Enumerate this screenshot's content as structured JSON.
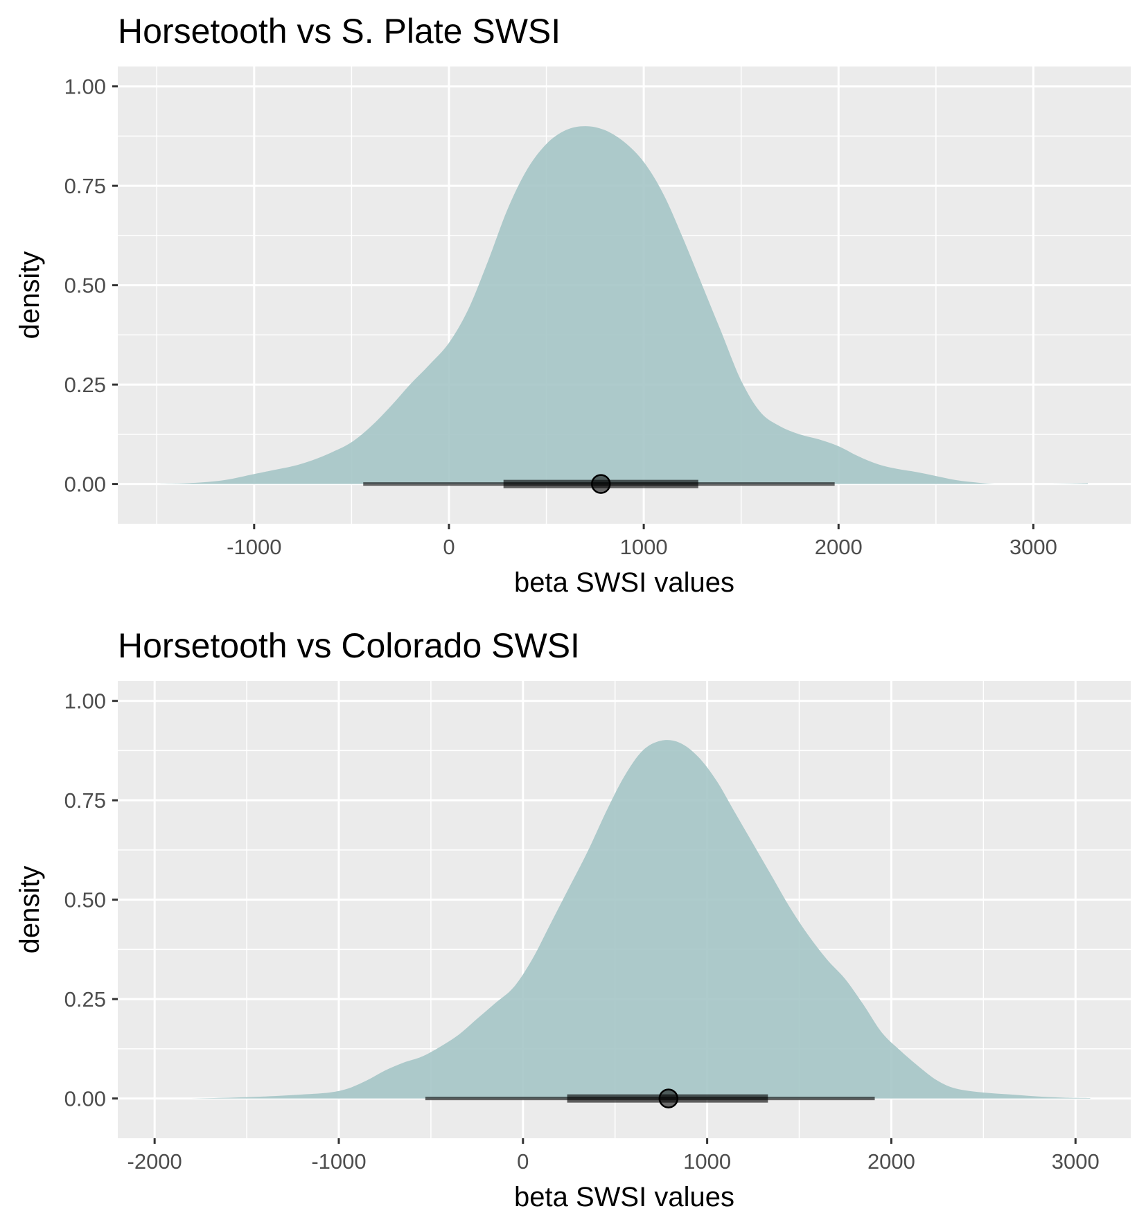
{
  "chart_data": [
    {
      "type": "area",
      "title": "Horsetooth vs S. Plate SWSI",
      "xlabel": "beta SWSI values",
      "ylabel": "density",
      "xlim": [
        -1700,
        3500
      ],
      "ylim": [
        -0.1,
        1.05
      ],
      "x_ticks": [
        -1000,
        0,
        1000,
        2000,
        3000
      ],
      "x_tick_labels": [
        "-1000",
        "0",
        "1000",
        "2000",
        "3000"
      ],
      "y_ticks": [
        0,
        0.25,
        0.5,
        0.75,
        1
      ],
      "y_tick_labels": [
        "0.00",
        "0.25",
        "0.50",
        "0.75",
        "1.00"
      ],
      "grid": true,
      "fill_color": "#a5c5c7",
      "panel_color": "#ebebeb",
      "density": {
        "x": [
          -1490,
          -1300,
          -1150,
          -1000,
          -900,
          -800,
          -700,
          -600,
          -500,
          -400,
          -300,
          -200,
          -100,
          0,
          100,
          200,
          300,
          400,
          500,
          600,
          700,
          800,
          900,
          1000,
          1100,
          1200,
          1300,
          1400,
          1500,
          1600,
          1700,
          1800,
          1900,
          2000,
          2100,
          2200,
          2300,
          2400,
          2500,
          2600,
          2700,
          2800,
          2900,
          3000,
          3100,
          3200,
          3280
        ],
        "y": [
          0.0,
          0.003,
          0.01,
          0.025,
          0.035,
          0.045,
          0.06,
          0.08,
          0.105,
          0.145,
          0.195,
          0.25,
          0.3,
          0.355,
          0.44,
          0.56,
          0.69,
          0.79,
          0.855,
          0.89,
          0.9,
          0.89,
          0.86,
          0.81,
          0.73,
          0.62,
          0.5,
          0.38,
          0.26,
          0.18,
          0.145,
          0.125,
          0.112,
          0.095,
          0.07,
          0.05,
          0.038,
          0.03,
          0.02,
          0.01,
          0.004,
          0.0,
          0.0,
          0.0,
          0.0,
          0.001,
          0.002
        ]
      },
      "point_interval": {
        "point": 780,
        "inner_interval": [
          280,
          1280
        ],
        "outer_interval": [
          -440,
          1980
        ]
      }
    },
    {
      "type": "area",
      "title": "Horsetooth vs Colorado SWSI",
      "xlabel": "beta SWSI values",
      "ylabel": "density",
      "xlim": [
        -2200,
        3300
      ],
      "ylim": [
        -0.1,
        1.05
      ],
      "x_ticks": [
        -2000,
        -1000,
        0,
        1000,
        2000,
        3000
      ],
      "x_tick_labels": [
        "-2000",
        "-1000",
        "0",
        "1000",
        "2000",
        "3000"
      ],
      "y_ticks": [
        0,
        0.25,
        0.5,
        0.75,
        1
      ],
      "y_tick_labels": [
        "0.00",
        "0.25",
        "0.50",
        "0.75",
        "1.00"
      ],
      "grid": true,
      "fill_color": "#a5c5c7",
      "panel_color": "#ebebeb",
      "density": {
        "x": [
          -1940,
          -1800,
          -1600,
          -1400,
          -1200,
          -1050,
          -950,
          -850,
          -750,
          -650,
          -550,
          -450,
          -350,
          -250,
          -150,
          -50,
          50,
          150,
          250,
          350,
          450,
          550,
          650,
          750,
          850,
          950,
          1050,
          1150,
          1250,
          1350,
          1450,
          1550,
          1650,
          1750,
          1850,
          1950,
          2050,
          2150,
          2250,
          2350,
          2500,
          2650,
          2800,
          2950,
          3080
        ],
        "y": [
          0.0,
          0.0,
          0.002,
          0.005,
          0.01,
          0.015,
          0.025,
          0.045,
          0.07,
          0.09,
          0.105,
          0.13,
          0.16,
          0.2,
          0.24,
          0.28,
          0.35,
          0.44,
          0.53,
          0.62,
          0.72,
          0.81,
          0.875,
          0.9,
          0.895,
          0.86,
          0.8,
          0.72,
          0.64,
          0.56,
          0.48,
          0.41,
          0.35,
          0.3,
          0.235,
          0.165,
          0.12,
          0.08,
          0.045,
          0.025,
          0.015,
          0.01,
          0.005,
          0.002,
          0.001
        ]
      },
      "point_interval": {
        "point": 790,
        "inner_interval": [
          240,
          1330
        ],
        "outer_interval": [
          -530,
          1910
        ]
      }
    }
  ]
}
